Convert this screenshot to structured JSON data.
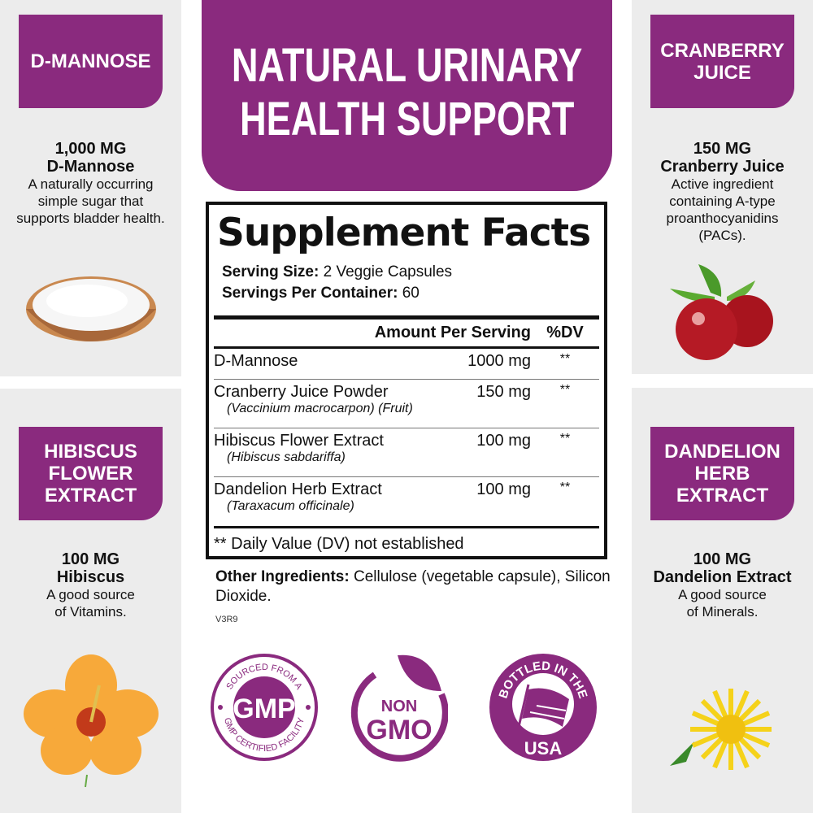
{
  "colors": {
    "brand_purple": "#8a2a7e",
    "panel_gray": "#ececec"
  },
  "header": {
    "line1": "NATURAL URINARY",
    "line2": "HEALTH SUPPORT"
  },
  "ingredients_panels": [
    {
      "label": "D-MANNOSE",
      "amount": "1,000 MG",
      "name": "D-Mannose",
      "description": "A naturally occurring simple sugar that supports bladder health.",
      "image": "powder-bowl"
    },
    {
      "label": "CRANBERRY JUICE",
      "amount": "150 MG",
      "name": "Cranberry Juice",
      "description": "Active ingredient containing A-type proanthocyanidins (PACs).",
      "image": "cranberries"
    },
    {
      "label": "HIBISCUS FLOWER EXTRACT",
      "amount": "100 MG",
      "name": "Hibiscus",
      "description": "A good source of Vitamins.",
      "image": "hibiscus-flower"
    },
    {
      "label": "DANDELION HERB EXTRACT",
      "amount": "100 MG",
      "name": "Dandelion Extract",
      "description": "A good source of Minerals.",
      "image": "dandelion-flower"
    }
  ],
  "facts": {
    "title": "Supplement Facts",
    "serving_size_label": "Serving Size:",
    "serving_size": " 2 Veggie Capsules",
    "servings_label": "Servings Per Container:",
    "servings": " 60",
    "col_amount": "Amount Per Serving",
    "col_dv": "%DV",
    "rows": [
      {
        "name": "D-Mannose",
        "sci": "",
        "amount": "1000 mg",
        "dv": "**"
      },
      {
        "name": "Cranberry Juice Powder",
        "sci": "(Vaccinium macrocarpon) (Fruit)",
        "amount": "150 mg",
        "dv": "**"
      },
      {
        "name": "Hibiscus Flower Extract",
        "sci": "(Hibiscus sabdariffa)",
        "amount": "100 mg",
        "dv": "**"
      },
      {
        "name": "Dandelion Herb Extract",
        "sci": "(Taraxacum officinale)",
        "amount": "100 mg",
        "dv": "**"
      }
    ],
    "footnote": "** Daily Value (DV) not established"
  },
  "other": {
    "label": "Other Ingredients:",
    "text": " Cellulose (vegetable capsule), Silicon Dioxide."
  },
  "version": "V3R9",
  "badges": {
    "gmp": {
      "top": "SOURCED FROM A",
      "center": "GMP",
      "bottom": "GMP CERTIFIED FACILITY"
    },
    "nongmo": {
      "line1": "NON",
      "line2": "GMO"
    },
    "usa": {
      "top": "BOTTLED IN THE",
      "bottom": "USA"
    }
  }
}
